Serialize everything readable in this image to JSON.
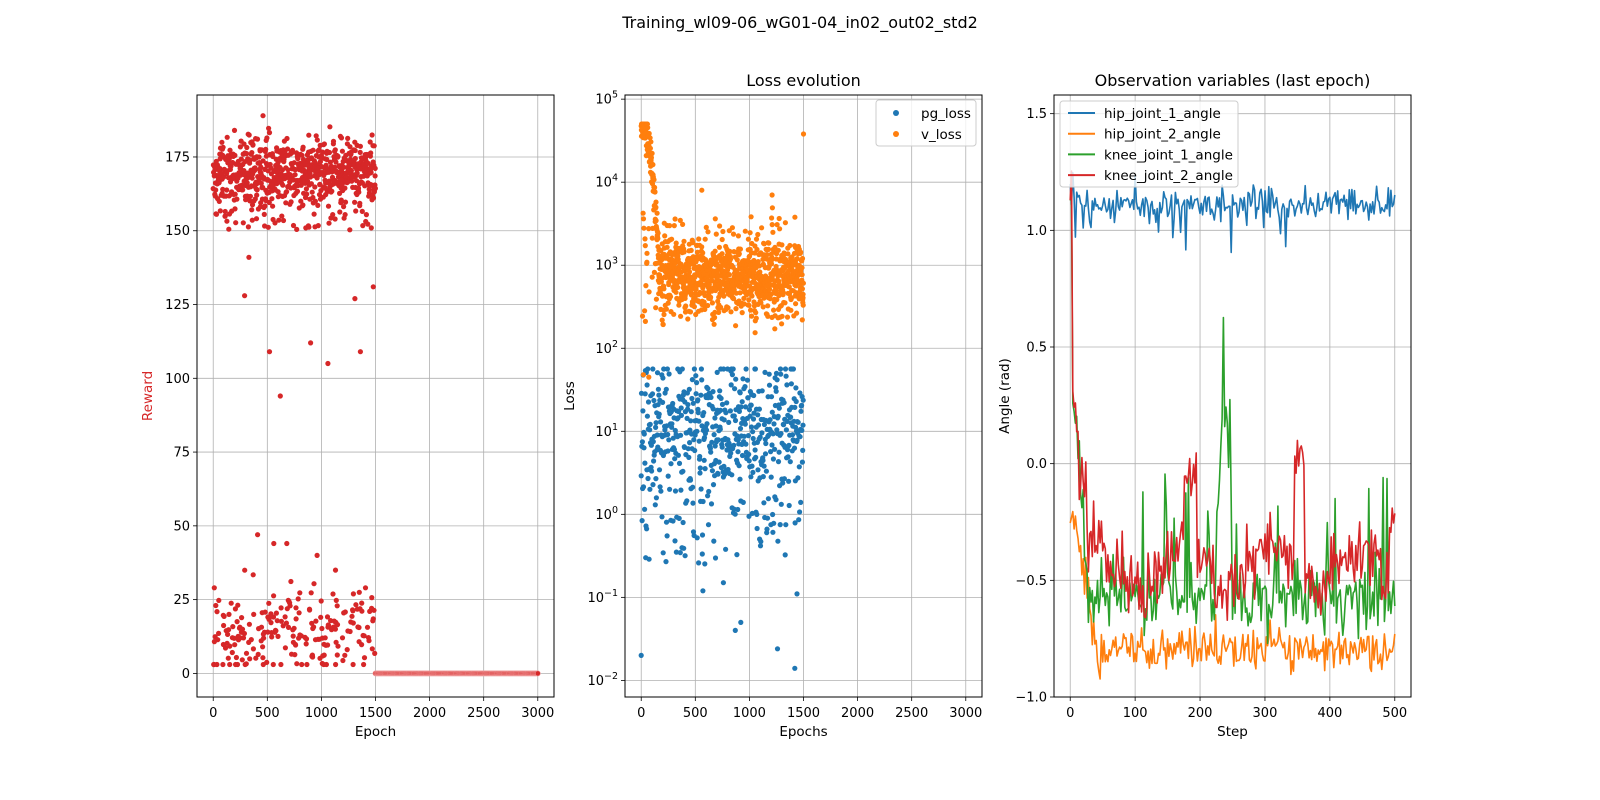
{
  "figure": {
    "suptitle": "Training_wl09-06_wG01-04_in02_out02_std2"
  },
  "colors": {
    "red": "#d62728",
    "blue": "#1f77b4",
    "orange": "#ff7f0e",
    "green": "#2ca02c",
    "grid": "#b0b0b0"
  },
  "chart_data": [
    {
      "id": "reward",
      "type": "scatter",
      "title": "",
      "xlabel": "Epoch",
      "ylabel": "Reward",
      "ylabel_color": "#d62728",
      "xlim": [
        -150,
        3150
      ],
      "ylim": [
        -8,
        196
      ],
      "xticks": [
        0,
        500,
        1000,
        1500,
        2000,
        2500,
        3000
      ],
      "yticks": [
        0,
        25,
        50,
        75,
        100,
        125,
        150,
        175
      ],
      "grid": true,
      "series": [
        {
          "color": "#d62728",
          "description": "epochs 0-1500: dense cluster around 155-185 (mean ~170) plus lower cluster 2-48 (mean ~15); scattered outliers",
          "outliers": [
            [
              10,
              29
            ],
            [
              290,
              128
            ],
            [
              330,
              141
            ],
            [
              410,
              47
            ],
            [
              460,
              189
            ],
            [
              520,
              109
            ],
            [
              560,
              44
            ],
            [
              620,
              94
            ],
            [
              680,
              44
            ],
            [
              900,
              112
            ],
            [
              960,
              40
            ],
            [
              1060,
              105
            ],
            [
              1130,
              35
            ],
            [
              1310,
              127
            ],
            [
              1360,
              109
            ],
            [
              1480,
              131
            ]
          ],
          "after_1500": {
            "x_range": [
              1500,
              3000
            ],
            "value": 0,
            "step": 10
          }
        }
      ]
    },
    {
      "id": "loss",
      "type": "scatter",
      "title": "Loss evolution",
      "xlabel": "Epochs",
      "ylabel": "Loss",
      "yscale": "log",
      "xlim": [
        -150,
        3150
      ],
      "ylim_log10": [
        -2.2,
        5.05
      ],
      "xticks": [
        0,
        500,
        1000,
        1500,
        2000,
        2500,
        3000
      ],
      "ytick_exponents": [
        -2,
        -1,
        0,
        1,
        2,
        3,
        4,
        5
      ],
      "grid": true,
      "legend": {
        "position": "top-right"
      },
      "series": [
        {
          "name": "pg_loss",
          "color": "#1f77b4",
          "description": "epochs 0-1500, values mostly 1-60, occasional drops to 0.01-0.5",
          "outliers": [
            [
              0,
              0.02
            ],
            [
              570,
              0.12
            ],
            [
              870,
              0.04
            ],
            [
              920,
              0.05
            ],
            [
              1260,
              0.024
            ],
            [
              1420,
              0.014
            ],
            [
              1440,
              0.11
            ],
            [
              760,
              0.15
            ]
          ]
        },
        {
          "name": "v_loss",
          "color": "#ff7f0e",
          "description": "epochs 0-150 peak ~50000 decaying to ~1000 by epoch 200, then noisy 100-5000 until 1500",
          "outliers": [
            [
              1500,
              38000
            ],
            [
              560,
              8000
            ],
            [
              1210,
              7000
            ],
            [
              20,
              48
            ],
            [
              70,
              45
            ]
          ]
        }
      ]
    },
    {
      "id": "obs",
      "type": "line",
      "title": "Observation variables (last epoch)",
      "xlabel": "Step",
      "ylabel": "Angle (rad)",
      "xlim": [
        -25,
        525
      ],
      "ylim": [
        -1.0,
        1.58
      ],
      "xticks": [
        0,
        100,
        200,
        300,
        400,
        500
      ],
      "yticks": [
        -1.0,
        -0.5,
        0.0,
        0.5,
        1.0,
        1.5
      ],
      "grid": true,
      "legend": {
        "position": "top-left"
      },
      "series": [
        {
          "name": "hip_joint_1_angle",
          "color": "#1f77b4",
          "description": "starts ~1.0, settles ~1.1 with dips to ~0.9"
        },
        {
          "name": "hip_joint_2_angle",
          "color": "#ff7f0e",
          "description": "drops from ~0 to ~-0.8, noisy -0.7 to -0.9"
        },
        {
          "name": "knee_joint_1_angle",
          "color": "#2ca02c",
          "description": "spike to ~1.2 at start, then ~-0.55 with peaks up to 0.25 near step 240"
        },
        {
          "name": "knee_joint_2_angle",
          "color": "#d62728",
          "description": "spike to ~1.2 at start, then -0.2 to -0.6 with peaks near step 185 and 355"
        }
      ]
    }
  ]
}
